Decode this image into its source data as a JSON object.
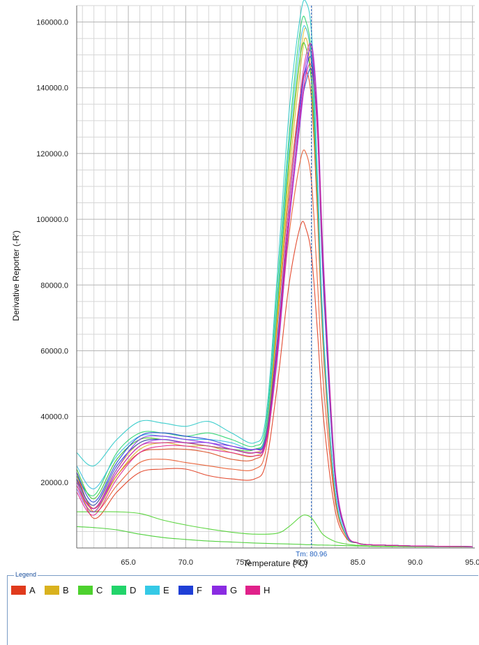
{
  "chart_data": {
    "type": "line",
    "title": "",
    "xlabel": "Temperature (°C)",
    "ylabel": "Derivative Reporter (-R')",
    "xlim": [
      60.5,
      95.2
    ],
    "ylim": [
      0,
      165000
    ],
    "x_ticks": [
      65.0,
      70.0,
      75.0,
      80.0,
      85.0,
      90.0,
      95.0
    ],
    "x_tick_labels": [
      "65.0",
      "70.0",
      "75.0",
      "80.0",
      "85.0",
      "90.0",
      "95.0"
    ],
    "y_ticks": [
      20000,
      40000,
      60000,
      80000,
      100000,
      120000,
      140000,
      160000
    ],
    "y_tick_labels": [
      "20000.0",
      "40000.0",
      "60000.0",
      "80000.0",
      "100000.0",
      "120000.0",
      "140000.0",
      "160000.0"
    ],
    "grid": true,
    "marker": {
      "x": 80.96,
      "label": "Tm: 80.96",
      "color": "#1f5fbf"
    },
    "series": [
      {
        "name": "A",
        "color": "#e03a1c",
        "x": [
          60.5,
          62,
          64,
          66,
          68,
          70,
          72,
          74,
          76,
          77,
          78,
          79,
          80,
          80.5,
          81,
          81.5,
          82,
          83,
          84,
          85,
          86,
          88,
          90,
          95
        ],
        "y": [
          21000,
          9000,
          17000,
          23000,
          24000,
          24000,
          22000,
          21000,
          21000,
          26000,
          50000,
          80000,
          98000,
          97000,
          88000,
          65000,
          40000,
          12000,
          3000,
          1500,
          1000,
          800,
          600,
          400
        ]
      },
      {
        "name": "A",
        "color": "#e8562a",
        "x": [
          60.5,
          62,
          64,
          66,
          68,
          70,
          72,
          74,
          76,
          77,
          78,
          79,
          80,
          80.5,
          81,
          81.5,
          82,
          83,
          84,
          85,
          86,
          88,
          90,
          95
        ],
        "y": [
          23000,
          11000,
          19000,
          26000,
          27000,
          26000,
          25000,
          24000,
          24000,
          30000,
          60000,
          95000,
          118000,
          120000,
          110000,
          80000,
          50000,
          15000,
          3500,
          1500,
          1000,
          800,
          600,
          400
        ]
      },
      {
        "name": "A",
        "color": "#d94b20",
        "x": [
          60.5,
          62,
          64,
          66,
          68,
          70,
          72,
          74,
          76,
          77,
          78,
          79,
          80,
          80.5,
          81,
          81.5,
          82,
          83,
          84,
          85,
          86,
          88,
          90,
          95
        ],
        "y": [
          22000,
          12000,
          22000,
          29000,
          30000,
          30000,
          29000,
          27000,
          27000,
          33000,
          68000,
          108000,
          138000,
          145000,
          135000,
          100000,
          60000,
          16000,
          3500,
          1500,
          1000,
          800,
          600,
          400
        ]
      },
      {
        "name": "B",
        "color": "#d9b21e",
        "x": [
          60.5,
          62,
          64,
          66,
          68,
          70,
          72,
          74,
          76,
          77,
          78,
          79,
          80,
          80.5,
          81,
          81.5,
          82,
          83,
          84,
          85,
          86,
          88,
          90,
          95
        ],
        "y": [
          19000,
          11000,
          22000,
          30000,
          32000,
          31000,
          31000,
          29000,
          28000,
          34000,
          70000,
          112000,
          146000,
          155000,
          140000,
          104000,
          62000,
          17000,
          3500,
          1500,
          1000,
          800,
          600,
          400
        ]
      },
      {
        "name": "B",
        "color": "#e0c038",
        "x": [
          60.5,
          62,
          64,
          66,
          68,
          70,
          72,
          74,
          76,
          77,
          78,
          79,
          80,
          80.5,
          81,
          81.5,
          82,
          83,
          84,
          85,
          86,
          88,
          90,
          95
        ],
        "y": [
          20000,
          13000,
          24000,
          32000,
          33000,
          32000,
          31000,
          30000,
          29000,
          35000,
          72000,
          116000,
          150000,
          158000,
          145000,
          110000,
          65000,
          18000,
          3800,
          1500,
          1000,
          800,
          600,
          400
        ]
      },
      {
        "name": "C",
        "color": "#3fcc2a",
        "x": [
          60.5,
          62,
          64,
          66,
          68,
          70,
          72,
          74,
          76,
          78,
          79,
          80,
          80.5,
          81,
          81.5,
          82,
          83,
          84,
          85,
          86,
          88,
          90,
          95
        ],
        "y": [
          6500,
          6200,
          5500,
          4200,
          3200,
          2600,
          2100,
          1800,
          1500,
          1300,
          1200,
          1100,
          1000,
          1000,
          900,
          900,
          800,
          700,
          600,
          500,
          450,
          400,
          350
        ]
      },
      {
        "name": "C",
        "color": "#4dd12e",
        "x": [
          60.5,
          62,
          64,
          66,
          68,
          70,
          72,
          74,
          76,
          78,
          79,
          80,
          80.5,
          81,
          81.5,
          82,
          83,
          84,
          85,
          86,
          88,
          90,
          95
        ],
        "y": [
          11000,
          11000,
          11000,
          10500,
          8500,
          7000,
          5800,
          4800,
          4200,
          4500,
          6500,
          9500,
          10000,
          9000,
          6500,
          4000,
          2000,
          1200,
          800,
          600,
          500,
          400,
          350
        ]
      },
      {
        "name": "C",
        "color": "#38c420",
        "x": [
          60.5,
          62,
          64,
          66,
          68,
          70,
          72,
          74,
          76,
          77,
          78,
          79,
          80,
          80.5,
          81,
          81.5,
          82,
          83,
          84,
          85,
          86,
          88,
          90,
          95
        ],
        "y": [
          24000,
          15000,
          27000,
          33000,
          33000,
          32000,
          31000,
          30000,
          30000,
          36000,
          74000,
          118000,
          150000,
          152000,
          140000,
          106000,
          64000,
          18000,
          3800,
          1500,
          1000,
          800,
          600,
          400
        ]
      },
      {
        "name": "D",
        "color": "#22d46a",
        "x": [
          60.5,
          62,
          64,
          66,
          68,
          70,
          72,
          74,
          76,
          77,
          78,
          79,
          80,
          80.5,
          81,
          81.5,
          82,
          83,
          84,
          85,
          86,
          88,
          90,
          95
        ],
        "y": [
          22000,
          16000,
          29000,
          35000,
          35000,
          34000,
          35000,
          33000,
          31000,
          38000,
          80000,
          125000,
          158000,
          160000,
          148000,
          108000,
          64000,
          18000,
          3800,
          1500,
          1000,
          800,
          600,
          400
        ]
      },
      {
        "name": "E",
        "color": "#2ac9c8",
        "x": [
          60.5,
          62,
          64,
          66,
          68,
          70,
          72,
          74,
          76,
          77,
          78,
          79,
          80,
          80.5,
          81,
          81.5,
          82,
          83,
          84,
          85,
          86,
          88,
          90,
          95
        ],
        "y": [
          29000,
          25000,
          33000,
          38500,
          38000,
          37000,
          38500,
          35000,
          32000,
          40000,
          84000,
          132000,
          162000,
          166000,
          155000,
          112000,
          66000,
          18000,
          3800,
          1500,
          1000,
          800,
          600,
          400
        ]
      },
      {
        "name": "E",
        "color": "#35bfe0",
        "x": [
          60.5,
          62,
          64,
          66,
          68,
          70,
          72,
          74,
          76,
          77,
          78,
          79,
          80,
          80.5,
          81,
          81.5,
          82,
          83,
          84,
          85,
          86,
          88,
          90,
          95
        ],
        "y": [
          25000,
          18000,
          28000,
          34000,
          34000,
          33000,
          33000,
          32000,
          30000,
          36000,
          76000,
          122000,
          154000,
          158000,
          146000,
          108000,
          64000,
          18000,
          3800,
          1500,
          1000,
          800,
          600,
          400
        ]
      },
      {
        "name": "F",
        "color": "#1f3fd6",
        "x": [
          60.5,
          62,
          64,
          66,
          68,
          70,
          72,
          74,
          76,
          77,
          78,
          79,
          80,
          80.5,
          81,
          81.5,
          82,
          83,
          84,
          85,
          86,
          88,
          90,
          95
        ],
        "y": [
          23000,
          14000,
          26000,
          34000,
          35000,
          34000,
          33000,
          31000,
          30000,
          34000,
          64000,
          104000,
          136000,
          146000,
          148000,
          125000,
          80000,
          22000,
          4500,
          1500,
          1000,
          800,
          600,
          400
        ]
      },
      {
        "name": "F",
        "color": "#2448c8",
        "x": [
          60.5,
          62,
          64,
          66,
          68,
          70,
          72,
          74,
          76,
          77,
          78,
          79,
          80,
          80.5,
          81,
          81.5,
          82,
          83,
          84,
          85,
          86,
          88,
          90,
          95
        ],
        "y": [
          21000,
          13000,
          25000,
          32000,
          33000,
          32000,
          32000,
          30000,
          29000,
          33000,
          62000,
          100000,
          132000,
          142000,
          145000,
          128000,
          84000,
          24000,
          4800,
          1500,
          1000,
          800,
          600,
          400
        ]
      },
      {
        "name": "G",
        "color": "#8a2be2",
        "x": [
          60.5,
          62,
          64,
          66,
          68,
          70,
          72,
          74,
          76,
          77,
          78,
          79,
          80,
          80.5,
          81,
          81.5,
          82,
          83,
          84,
          85,
          86,
          88,
          90,
          95
        ],
        "y": [
          20000,
          12000,
          24000,
          33000,
          34000,
          33000,
          32000,
          31000,
          30000,
          33000,
          60000,
          100000,
          134000,
          148000,
          150000,
          130000,
          86000,
          24000,
          4800,
          1500,
          1000,
          800,
          600,
          400
        ]
      },
      {
        "name": "G",
        "color": "#9b3ff0",
        "x": [
          60.5,
          62,
          64,
          66,
          68,
          70,
          72,
          74,
          76,
          77,
          78,
          79,
          80,
          80.5,
          81,
          81.5,
          82,
          83,
          84,
          85,
          86,
          88,
          90,
          95
        ],
        "y": [
          18000,
          11000,
          23000,
          31000,
          33000,
          32000,
          32000,
          30000,
          29000,
          32000,
          58000,
          98000,
          130000,
          145000,
          153000,
          132000,
          88000,
          25000,
          5000,
          1500,
          1000,
          800,
          600,
          400
        ]
      },
      {
        "name": "H",
        "color": "#e0218a",
        "x": [
          60.5,
          62,
          64,
          66,
          68,
          70,
          72,
          74,
          76,
          77,
          78,
          79,
          80,
          80.5,
          81,
          81.5,
          82,
          83,
          84,
          85,
          86,
          88,
          90,
          95
        ],
        "y": [
          17000,
          10000,
          21000,
          29000,
          31000,
          31000,
          30000,
          29000,
          28000,
          32000,
          60000,
          100000,
          132000,
          144000,
          146000,
          126000,
          84000,
          24000,
          4800,
          1500,
          1000,
          800,
          600,
          400
        ]
      },
      {
        "name": "H",
        "color": "#d42e9a",
        "x": [
          60.5,
          62,
          64,
          66,
          68,
          70,
          72,
          74,
          76,
          77,
          78,
          79,
          80,
          80.5,
          81,
          81.5,
          82,
          83,
          84,
          85,
          86,
          88,
          90,
          95
        ],
        "y": [
          19000,
          12000,
          23000,
          31000,
          32000,
          32000,
          31000,
          30000,
          29000,
          33000,
          62000,
          104000,
          138000,
          150000,
          152000,
          130000,
          86000,
          24000,
          4800,
          1500,
          1000,
          800,
          600,
          400
        ]
      }
    ]
  },
  "legend": {
    "title": "Legend",
    "items": [
      {
        "label": "A",
        "color": "#e03a1c"
      },
      {
        "label": "B",
        "color": "#d9b21e"
      },
      {
        "label": "C",
        "color": "#4dd12e"
      },
      {
        "label": "D",
        "color": "#22d46a"
      },
      {
        "label": "E",
        "color": "#35c9e6"
      },
      {
        "label": "F",
        "color": "#1f3fd6"
      },
      {
        "label": "G",
        "color": "#8a2be2"
      },
      {
        "label": "H",
        "color": "#e0218a"
      }
    ]
  }
}
